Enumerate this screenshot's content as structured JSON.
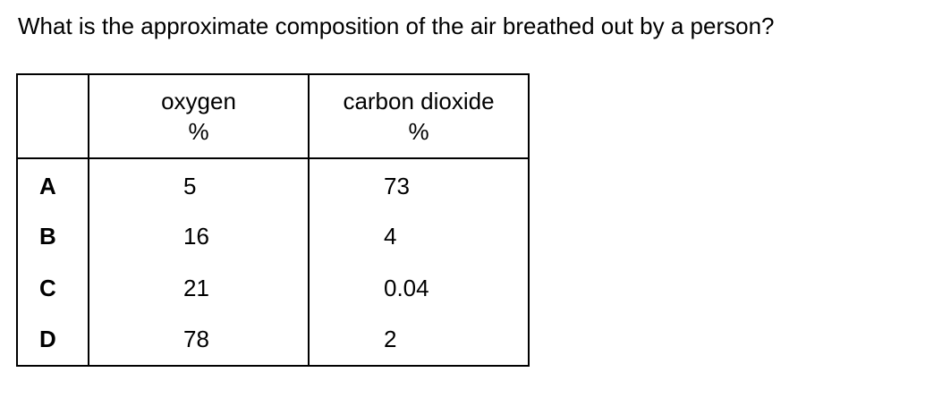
{
  "question": "What is the approximate composition of the air breathed out by a person?",
  "table": {
    "headers": {
      "blank": "",
      "oxygen": {
        "name": "oxygen",
        "unit": "%"
      },
      "carbon_dioxide": {
        "name": "carbon dioxide",
        "unit": "%"
      }
    },
    "rows": [
      {
        "letter": "A",
        "oxygen": "5",
        "carbon_dioxide": "73"
      },
      {
        "letter": "B",
        "oxygen": "16",
        "carbon_dioxide": "4"
      },
      {
        "letter": "C",
        "oxygen": "21",
        "carbon_dioxide": "0.04"
      },
      {
        "letter": "D",
        "oxygen": "78",
        "carbon_dioxide": "2"
      }
    ]
  }
}
